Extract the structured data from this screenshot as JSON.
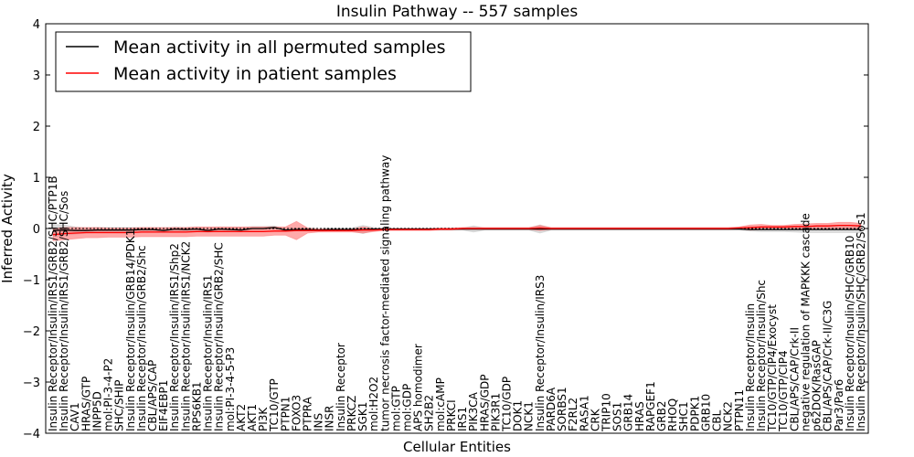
{
  "chart_data": {
    "type": "line",
    "title": "Insulin Pathway -- 557 samples",
    "xlabel": "Cellular Entities",
    "ylabel": "Inferred Activity",
    "ylim": [
      -4,
      4
    ],
    "yticks": [
      -4,
      -3,
      -2,
      -1,
      0,
      1,
      2,
      3,
      4
    ],
    "legend_position": "top-left",
    "categories": [
      "Insulin Receptor/Insulin/IRS1/GRB2/SHC/PTP1B",
      "Insulin Receptor/Insulin/IRS1/GRB2/SHC/Sos",
      "CAV1",
      "HRAS/GTP",
      "INPP5D",
      "mol:PI-3-4-P2",
      "SHC/SHIP",
      "Insulin Receptor/Insulin/GRB14/PDK1",
      "Insulin Receptor/Insulin/GRB2/Shc",
      "CBL/APS/CAP",
      "EIF4EBP1",
      "Insulin Receptor/Insulin/IRS1/Shp2",
      "Insulin Receptor/Insulin/IRS1/NCK2",
      "RPS6KB1",
      "Insulin Receptor/Insulin/IRS1",
      "Insulin Receptor/Insulin/GRB2/SHC",
      "mol:PI-3-4-5-P3",
      "AKT2",
      "AKT1",
      "PI3K",
      "TC10/GTP",
      "PTPN1",
      "FOXO3",
      "PTPRA",
      "INS",
      "INSR",
      "Insulin Receptor",
      "PRKCZ",
      "SGK1",
      "mol:H2O2",
      "tumor necrosis factor-mediated signaling pathway",
      "mol:GTP",
      "mol:GDP",
      "APS homodimer",
      "SH2B2",
      "mol:cAMP",
      "PRKCI",
      "IRS1",
      "PIK3CA",
      "HRAS/GDP",
      "PIK3R1",
      "TC10/GDP",
      "DOK1",
      "NCK1",
      "Insulin Receptor/Insulin/IRS3",
      "PARD6A",
      "SORBS1",
      "F2RL2",
      "RASA1",
      "CRK",
      "TRIP10",
      "SOS1",
      "GRB14",
      "HRAS",
      "RAPGEF1",
      "GRB2",
      "RHOQ",
      "SHC1",
      "PDPK1",
      "GRB10",
      "CBL",
      "NCK2",
      "PTPN11",
      "Insulin Receptor/Insulin",
      "Insulin Receptor/Insulin/Shc",
      "TC10/GTP/CIP4/Exocyst",
      "TC10/GTP/CIP4",
      "CBL/APS/CAP/Crk-II",
      "negative regulation of MAPKKK cascade",
      "p62DOK/RasGAP",
      "CBL/APS/CAP/Crk-II/C3G",
      "Par3/Par6",
      "Insulin Receptor/Insulin/SHC/GRB10",
      "Insulin Receptor/Insulin/SHC/GRB2/Sos1"
    ],
    "series": [
      {
        "name": "Mean activity in all permuted samples",
        "color": "#000000",
        "values": [
          -0.04,
          -0.03,
          -0.04,
          -0.04,
          -0.03,
          -0.03,
          -0.03,
          -0.03,
          -0.02,
          -0.02,
          -0.04,
          -0.01,
          -0.02,
          -0.01,
          -0.04,
          -0.01,
          -0.02,
          -0.03,
          0.0,
          0.0,
          0.02,
          -0.03,
          -0.02,
          -0.02,
          -0.03,
          -0.02,
          -0.02,
          -0.02,
          -0.02,
          -0.01,
          -0.01,
          -0.01,
          -0.01,
          -0.01,
          -0.01,
          -0.01,
          -0.01,
          -0.01,
          -0.01,
          -0.01,
          -0.01,
          -0.01,
          -0.01,
          -0.01,
          -0.01,
          -0.01,
          -0.01,
          -0.01,
          -0.01,
          -0.01,
          -0.01,
          -0.01,
          -0.01,
          -0.01,
          -0.01,
          -0.01,
          -0.01,
          -0.01,
          -0.01,
          -0.01,
          -0.01,
          -0.01,
          -0.01,
          -0.02,
          -0.02,
          -0.02,
          -0.02,
          -0.02,
          -0.02,
          -0.02,
          -0.02,
          -0.02,
          -0.02,
          -0.02
        ],
        "spread": [
          0.12,
          0.1,
          0.07,
          0.05,
          0.05,
          0.05,
          0.05,
          0.05,
          0.04,
          0.04,
          0.04,
          0.04,
          0.04,
          0.04,
          0.04,
          0.04,
          0.04,
          0.04,
          0.04,
          0.04,
          0.03,
          0.03,
          0.03,
          0.03,
          0.03,
          0.03,
          0.03,
          0.03,
          0.08,
          0.03,
          0.02,
          0.02,
          0.02,
          0.02,
          0.02,
          0.02,
          0.02,
          0.02,
          0.06,
          0.02,
          0.02,
          0.02,
          0.02,
          0.02,
          0.08,
          0.02,
          0.02,
          0.02,
          0.02,
          0.02,
          0.02,
          0.02,
          0.02,
          0.02,
          0.02,
          0.02,
          0.02,
          0.02,
          0.02,
          0.02,
          0.02,
          0.02,
          0.02,
          0.03,
          0.04,
          0.04,
          0.04,
          0.05,
          0.06,
          0.06,
          0.06,
          0.06,
          0.06,
          0.06
        ],
        "fill_color": "#c0c0c0"
      },
      {
        "name": "Mean activity in patient samples",
        "color": "#ff0000",
        "values": [
          -0.12,
          -0.1,
          -0.09,
          -0.08,
          -0.08,
          -0.08,
          -0.08,
          -0.08,
          -0.07,
          -0.07,
          -0.07,
          -0.07,
          -0.07,
          -0.06,
          -0.06,
          -0.06,
          -0.06,
          -0.06,
          -0.06,
          -0.06,
          -0.05,
          -0.05,
          -0.04,
          -0.04,
          -0.04,
          -0.04,
          -0.04,
          -0.04,
          -0.03,
          -0.03,
          -0.02,
          -0.02,
          -0.02,
          -0.02,
          -0.02,
          -0.01,
          -0.01,
          0.0,
          0.0,
          0.0,
          0.0,
          0.0,
          0.0,
          0.0,
          0.01,
          0.0,
          0.0,
          0.0,
          0.0,
          0.0,
          0.0,
          0.0,
          0.0,
          0.0,
          0.0,
          0.0,
          0.0,
          0.0,
          0.0,
          0.0,
          0.0,
          0.0,
          0.01,
          0.02,
          0.03,
          0.03,
          0.03,
          0.04,
          0.04,
          0.05,
          0.05,
          0.06,
          0.06,
          0.05
        ],
        "spread": [
          0.12,
          0.12,
          0.11,
          0.1,
          0.1,
          0.09,
          0.09,
          0.09,
          0.09,
          0.09,
          0.09,
          0.09,
          0.09,
          0.09,
          0.09,
          0.09,
          0.09,
          0.09,
          0.09,
          0.09,
          0.08,
          0.08,
          0.18,
          0.05,
          0.03,
          0.03,
          0.03,
          0.03,
          0.06,
          0.03,
          0.02,
          0.02,
          0.02,
          0.02,
          0.02,
          0.02,
          0.02,
          0.02,
          0.02,
          0.02,
          0.02,
          0.02,
          0.02,
          0.02,
          0.05,
          0.02,
          0.02,
          0.02,
          0.02,
          0.02,
          0.02,
          0.02,
          0.02,
          0.02,
          0.02,
          0.02,
          0.02,
          0.02,
          0.02,
          0.02,
          0.02,
          0.02,
          0.02,
          0.05,
          0.05,
          0.03,
          0.03,
          0.04,
          0.05,
          0.05,
          0.05,
          0.06,
          0.06,
          0.05
        ],
        "fill_color": "#ff7070"
      }
    ]
  }
}
